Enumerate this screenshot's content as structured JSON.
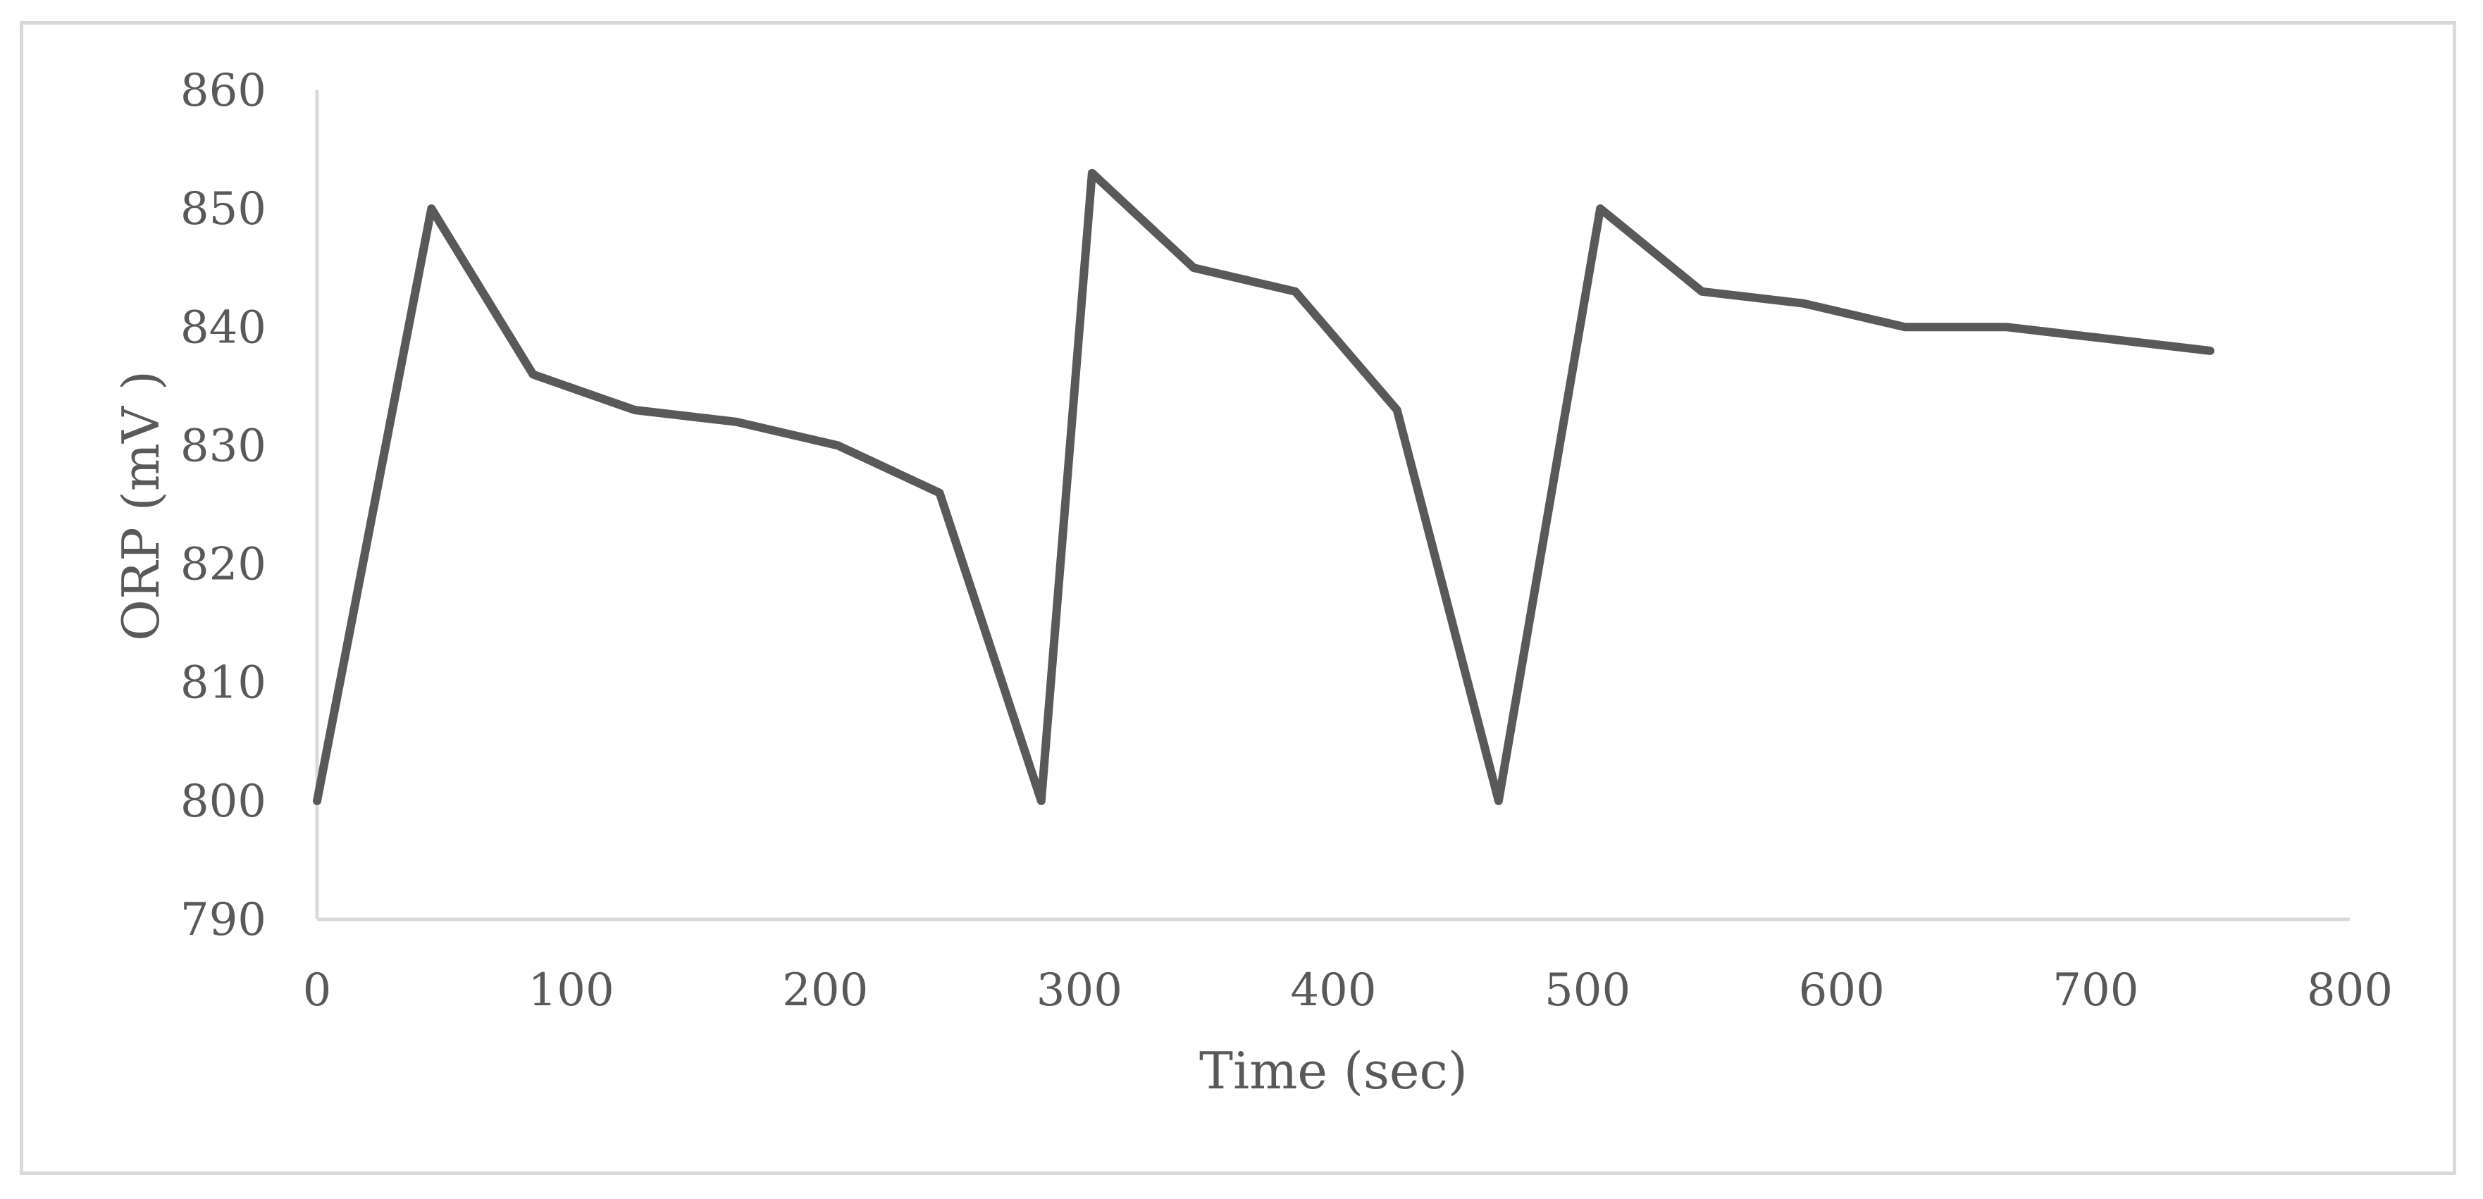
{
  "chart_data": {
    "type": "line",
    "title": "",
    "xlabel": "Time (sec)",
    "ylabel": "ORP (mV )",
    "xlim": [
      0,
      800
    ],
    "ylim": [
      790,
      860
    ],
    "x_ticks": [
      "0",
      "100",
      "200",
      "300",
      "400",
      "500",
      "600",
      "700",
      "800"
    ],
    "y_ticks": [
      "790",
      "800",
      "810",
      "820",
      "830",
      "840",
      "850",
      "860"
    ],
    "grid": false,
    "legend": "none",
    "series": [
      {
        "color": "#595959",
        "x": [
          0,
          45,
          85,
          125,
          165,
          205,
          245,
          285,
          305,
          345,
          385,
          425,
          465,
          505,
          545,
          585,
          625,
          665,
          705,
          745
        ],
        "y": [
          800,
          850,
          836,
          833,
          832,
          830,
          826,
          800,
          853,
          845,
          843,
          833,
          800,
          850,
          843,
          842,
          840,
          840,
          839,
          838
        ]
      }
    ]
  }
}
